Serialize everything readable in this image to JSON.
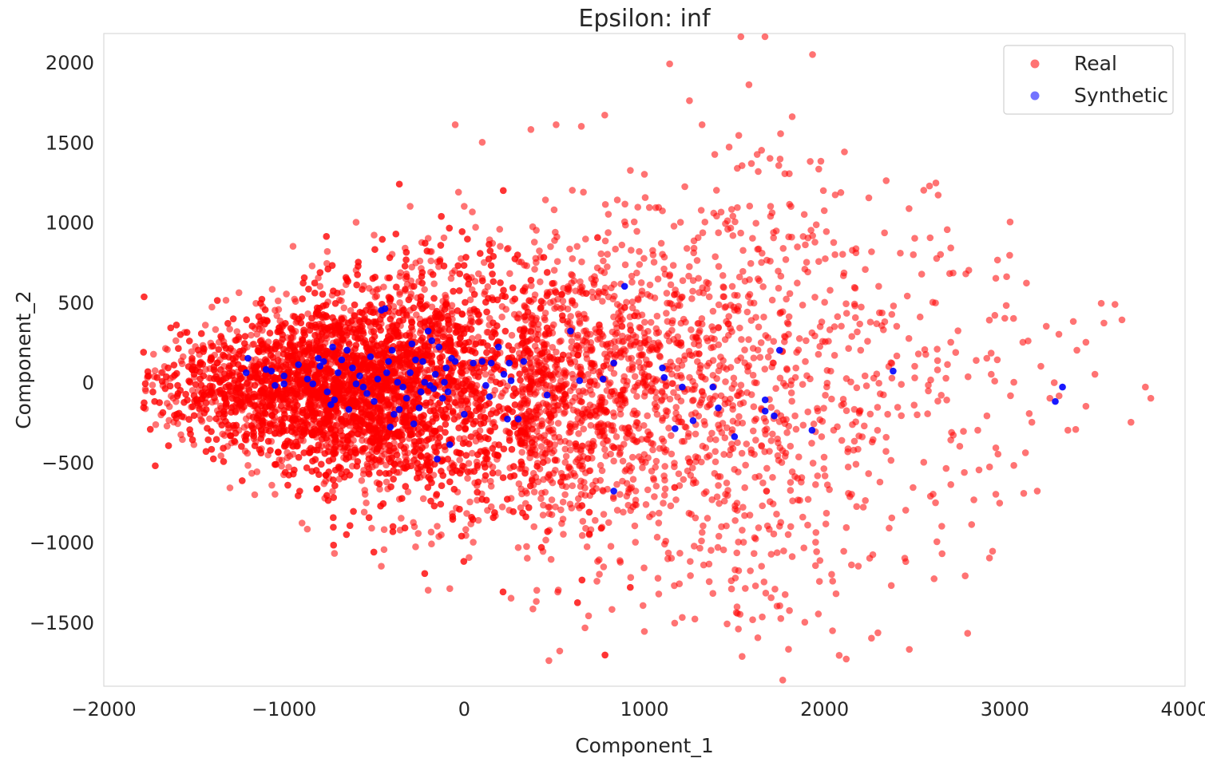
{
  "chart_data": {
    "type": "scatter",
    "title": "Epsilon: inf",
    "xlabel": "Component_1",
    "ylabel": "Component_2",
    "xlim": [
      -2000,
      4000
    ],
    "ylim": [
      -1900,
      2180
    ],
    "xticks": [
      "-2000",
      "-1000",
      "0",
      "1000",
      "2000",
      "3000",
      "4000"
    ],
    "xtick_values": [
      -2000,
      -1000,
      0,
      1000,
      2000,
      3000,
      4000
    ],
    "yticks": [
      "-1500",
      "-1000",
      "-500",
      "0",
      "500",
      "1000",
      "1500",
      "2000"
    ],
    "ytick_values": [
      -1500,
      -1000,
      -500,
      0,
      500,
      1000,
      1500,
      2000
    ],
    "grid": false,
    "legend_position": "top-right",
    "series": [
      {
        "name": "Real",
        "color": "#ff0000",
        "opacity": 0.55,
        "distribution": "dense cloud centered near (-500, 0), spreading wider toward positive Component_1",
        "points": [
          [
            -1750,
            40
          ],
          [
            -1720,
            35
          ],
          [
            -1680,
            60
          ],
          [
            -1600,
            260
          ],
          [
            -1560,
            160
          ],
          [
            -1500,
            -390
          ],
          [
            -1480,
            90
          ],
          [
            -1450,
            -60
          ],
          [
            -1400,
            470
          ],
          [
            -1380,
            330
          ],
          [
            -1300,
            -660
          ],
          [
            -1250,
            560
          ],
          [
            -1200,
            -520
          ],
          [
            -950,
            850
          ],
          [
            -600,
            1000
          ],
          [
            -500,
            920
          ],
          [
            -300,
            1100
          ],
          [
            -50,
            1610
          ],
          [
            100,
            1500
          ],
          [
            370,
            1580
          ],
          [
            510,
            1610
          ],
          [
            650,
            1600
          ],
          [
            780,
            1670
          ],
          [
            1140,
            1990
          ],
          [
            1250,
            1760
          ],
          [
            1320,
            1610
          ],
          [
            1470,
            1470
          ],
          [
            1580,
            1860
          ],
          [
            1650,
            1450
          ],
          [
            1820,
            1660
          ],
          [
            1920,
            1380
          ],
          [
            2110,
            1440
          ],
          [
            2500,
            900
          ],
          [
            2630,
            1170
          ],
          [
            2550,
            1200
          ],
          [
            2700,
            840
          ],
          [
            2950,
            650
          ],
          [
            3010,
            660
          ],
          [
            3120,
            620
          ],
          [
            3230,
            350
          ],
          [
            3380,
            380
          ],
          [
            3450,
            250
          ],
          [
            3550,
            370
          ],
          [
            3650,
            390
          ],
          [
            3700,
            -250
          ],
          [
            3780,
            -30
          ],
          [
            3810,
            -100
          ],
          [
            3180,
            -680
          ],
          [
            3050,
            -520
          ],
          [
            2950,
            -410
          ],
          [
            2780,
            -1210
          ],
          [
            2470,
            -1670
          ],
          [
            2260,
            -1600
          ],
          [
            2120,
            -1730
          ],
          [
            1890,
            -1500
          ],
          [
            1650,
            -1150
          ],
          [
            1380,
            -1320
          ],
          [
            1280,
            -1480
          ],
          [
            1210,
            -1470
          ],
          [
            820,
            -1420
          ],
          [
            690,
            -1460
          ],
          [
            470,
            -1740
          ],
          [
            530,
            -1680
          ],
          [
            400,
            -1370
          ],
          [
            260,
            -1350
          ],
          [
            -80,
            -1290
          ],
          [
            -200,
            -1300
          ],
          [
            -460,
            -1150
          ],
          [
            -720,
            -1070
          ],
          [
            -900,
            -880
          ],
          [
            -1050,
            -700
          ],
          [
            -1150,
            -560
          ],
          [
            -1350,
            -460
          ],
          [
            -1450,
            230
          ],
          [
            -1380,
            -120
          ],
          [
            -1300,
            100
          ],
          [
            -1250,
            -300
          ],
          [
            -1150,
            300
          ],
          [
            -1100,
            -200
          ],
          [
            -1050,
            450
          ],
          [
            -950,
            -450
          ],
          [
            -900,
            200
          ],
          [
            -850,
            -300
          ],
          [
            -800,
            600
          ],
          [
            -750,
            -600
          ],
          [
            -700,
            350
          ],
          [
            -650,
            -150
          ],
          [
            -600,
            700
          ],
          [
            -550,
            -700
          ],
          [
            -500,
            250
          ],
          [
            -450,
            -400
          ],
          [
            -400,
            800
          ],
          [
            -350,
            -850
          ],
          [
            -300,
            450
          ],
          [
            -250,
            -250
          ],
          [
            -200,
            900
          ],
          [
            -150,
            -900
          ],
          [
            -100,
            500
          ],
          [
            -50,
            -550
          ],
          [
            0,
            1100
          ],
          [
            50,
            -1000
          ],
          [
            100,
            650
          ],
          [
            150,
            -650
          ],
          [
            200,
            850
          ],
          [
            250,
            -800
          ],
          [
            300,
            400
          ],
          [
            350,
            -1100
          ],
          [
            400,
            950
          ],
          [
            450,
            -450
          ],
          [
            500,
            700
          ],
          [
            550,
            -950
          ],
          [
            600,
            1200
          ],
          [
            650,
            -700
          ],
          [
            700,
            300
          ],
          [
            750,
            -1200
          ],
          [
            800,
            1050
          ],
          [
            850,
            -800
          ],
          [
            900,
            500
          ],
          [
            950,
            -1000
          ],
          [
            1000,
            1300
          ],
          [
            1050,
            -600
          ],
          [
            1100,
            800
          ],
          [
            1150,
            -1100
          ],
          [
            1200,
            1000
          ],
          [
            1250,
            -500
          ],
          [
            1300,
            650
          ],
          [
            1350,
            -850
          ],
          [
            1400,
            1200
          ],
          [
            1450,
            -700
          ],
          [
            1500,
            450
          ],
          [
            1550,
            -1000
          ],
          [
            1600,
            900
          ],
          [
            1650,
            -400
          ],
          [
            1700,
            1100
          ],
          [
            1750,
            -900
          ],
          [
            1800,
            300
          ],
          [
            1850,
            -600
          ],
          [
            1900,
            750
          ],
          [
            1950,
            -1000
          ],
          [
            2000,
            500
          ],
          [
            2050,
            -300
          ],
          [
            2100,
            800
          ],
          [
            2150,
            -700
          ],
          [
            2200,
            200
          ],
          [
            2250,
            -1100
          ],
          [
            2300,
            600
          ],
          [
            2350,
            -200
          ],
          [
            2400,
            350
          ],
          [
            2450,
            -800
          ],
          [
            2500,
            100
          ],
          [
            2550,
            -500
          ],
          [
            2600,
            500
          ],
          [
            2650,
            -900
          ],
          [
            2700,
            250
          ],
          [
            2750,
            -400
          ],
          [
            2800,
            700
          ],
          [
            2850,
            -300
          ],
          [
            2900,
            150
          ],
          [
            2950,
            -700
          ],
          [
            3000,
            400
          ],
          [
            3050,
            0
          ],
          [
            3100,
            250
          ],
          [
            3150,
            -250
          ],
          [
            3200,
            100
          ],
          [
            3250,
            -100
          ],
          [
            3300,
            300
          ],
          [
            3350,
            -300
          ],
          [
            3400,
            200
          ],
          [
            3450,
            -150
          ],
          [
            3500,
            50
          ],
          [
            -1200,
            0
          ],
          [
            -1100,
            50
          ],
          [
            -1000,
            -50
          ],
          [
            -900,
            100
          ],
          [
            -800,
            -100
          ],
          [
            -700,
            0
          ],
          [
            -600,
            150
          ],
          [
            -500,
            -150
          ],
          [
            -400,
            50
          ],
          [
            -300,
            -50
          ],
          [
            -200,
            200
          ],
          [
            -100,
            -200
          ],
          [
            0,
            100
          ],
          [
            100,
            -100
          ],
          [
            200,
            250
          ],
          [
            300,
            -250
          ],
          [
            400,
            150
          ],
          [
            500,
            -150
          ],
          [
            600,
            50
          ],
          [
            700,
            -50
          ]
        ]
      },
      {
        "name": "Synthetic",
        "color": "#0000ff",
        "opacity": 0.55,
        "points": [
          [
            -1200,
            150
          ],
          [
            -1210,
            60
          ],
          [
            -1100,
            80
          ],
          [
            -1070,
            70
          ],
          [
            -1050,
            -20
          ],
          [
            -1000,
            40
          ],
          [
            -1000,
            -10
          ],
          [
            -920,
            110
          ],
          [
            -870,
            20
          ],
          [
            -840,
            -10
          ],
          [
            -810,
            150
          ],
          [
            -800,
            100
          ],
          [
            -780,
            130
          ],
          [
            -760,
            -60
          ],
          [
            -740,
            -140
          ],
          [
            -730,
            220
          ],
          [
            -720,
            -110
          ],
          [
            -700,
            60
          ],
          [
            -680,
            140
          ],
          [
            -650,
            200
          ],
          [
            -640,
            -170
          ],
          [
            -620,
            90
          ],
          [
            -600,
            -10
          ],
          [
            -580,
            40
          ],
          [
            -560,
            -30
          ],
          [
            -540,
            -70
          ],
          [
            -520,
            160
          ],
          [
            -500,
            -120
          ],
          [
            -480,
            20
          ],
          [
            -460,
            450
          ],
          [
            -440,
            460
          ],
          [
            -430,
            60
          ],
          [
            -420,
            130
          ],
          [
            -410,
            -280
          ],
          [
            -400,
            200
          ],
          [
            -390,
            -200
          ],
          [
            -370,
            0
          ],
          [
            -360,
            -170
          ],
          [
            -340,
            -30
          ],
          [
            -320,
            -100
          ],
          [
            -300,
            60
          ],
          [
            -290,
            240
          ],
          [
            -280,
            -260
          ],
          [
            -270,
            140
          ],
          [
            -250,
            -160
          ],
          [
            -240,
            -60
          ],
          [
            -230,
            130
          ],
          [
            -220,
            0
          ],
          [
            -200,
            320
          ],
          [
            -190,
            -20
          ],
          [
            -180,
            260
          ],
          [
            -170,
            -40
          ],
          [
            -160,
            50
          ],
          [
            -150,
            -480
          ],
          [
            -140,
            220
          ],
          [
            -120,
            -100
          ],
          [
            -110,
            0
          ],
          [
            -100,
            90
          ],
          [
            -90,
            -60
          ],
          [
            -80,
            -390
          ],
          [
            -70,
            150
          ],
          [
            -50,
            130
          ],
          [
            0,
            -200
          ],
          [
            50,
            120
          ],
          [
            100,
            130
          ],
          [
            120,
            -20
          ],
          [
            140,
            -90
          ],
          [
            150,
            120
          ],
          [
            190,
            220
          ],
          [
            220,
            50
          ],
          [
            240,
            -230
          ],
          [
            250,
            120
          ],
          [
            260,
            10
          ],
          [
            300,
            -230
          ],
          [
            330,
            130
          ],
          [
            460,
            -80
          ],
          [
            590,
            320
          ],
          [
            640,
            10
          ],
          [
            770,
            20
          ],
          [
            830,
            120
          ],
          [
            890,
            600
          ],
          [
            830,
            -680
          ],
          [
            1100,
            90
          ],
          [
            1110,
            30
          ],
          [
            1170,
            -290
          ],
          [
            1210,
            -30
          ],
          [
            1270,
            -240
          ],
          [
            1380,
            -30
          ],
          [
            1410,
            -160
          ],
          [
            1500,
            -340
          ],
          [
            1670,
            -110
          ],
          [
            1670,
            -180
          ],
          [
            1720,
            -210
          ],
          [
            1750,
            200
          ],
          [
            1930,
            -300
          ],
          [
            2380,
            70
          ],
          [
            3280,
            -120
          ],
          [
            3320,
            -30
          ]
        ]
      }
    ]
  }
}
